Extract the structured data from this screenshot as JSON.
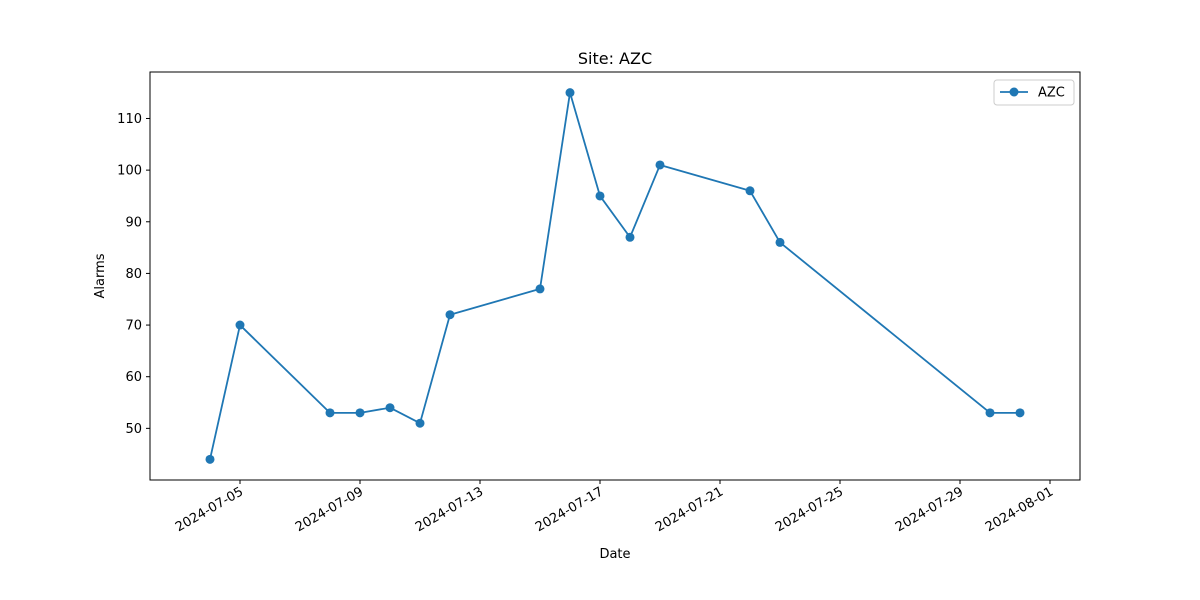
{
  "chart_data": {
    "type": "line",
    "title": "Site: AZC",
    "xlabel": "Date",
    "ylabel": "Alarms",
    "x_is_date": true,
    "xlim": [
      "2024-07-02",
      "2024-08-02"
    ],
    "ylim": [
      40,
      119
    ],
    "x_ticks": [
      "2024-07-05",
      "2024-07-09",
      "2024-07-13",
      "2024-07-17",
      "2024-07-21",
      "2024-07-25",
      "2024-07-29",
      "2024-08-01"
    ],
    "y_ticks": [
      50,
      60,
      70,
      80,
      90,
      100,
      110
    ],
    "grid": false,
    "legend": {
      "position": "top-right"
    },
    "series": [
      {
        "name": "AZC",
        "color": "#1f77b4",
        "marker": "circle",
        "x": [
          "2024-07-04",
          "2024-07-05",
          "2024-07-08",
          "2024-07-09",
          "2024-07-10",
          "2024-07-11",
          "2024-07-12",
          "2024-07-15",
          "2024-07-16",
          "2024-07-17",
          "2024-07-18",
          "2024-07-19",
          "2024-07-22",
          "2024-07-23",
          "2024-07-30",
          "2024-07-31"
        ],
        "y": [
          44,
          70,
          53,
          53,
          54,
          51,
          72,
          77,
          115,
          95,
          87,
          101,
          96,
          86,
          53,
          53
        ]
      }
    ]
  }
}
